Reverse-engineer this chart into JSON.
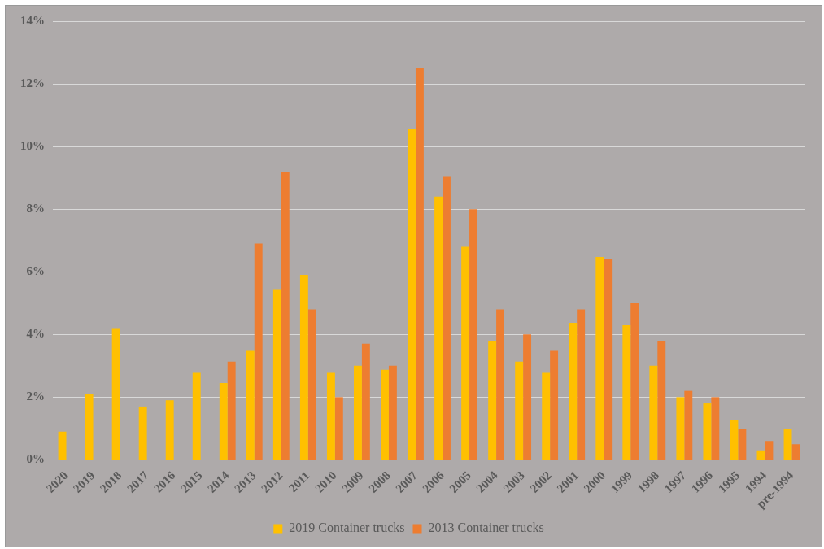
{
  "chart_data": {
    "type": "bar",
    "categories": [
      "2020",
      "2019",
      "2018",
      "2017",
      "2016",
      "2015",
      "2014",
      "2013",
      "2012",
      "2011",
      "2010",
      "2009",
      "2008",
      "2007",
      "2006",
      "2005",
      "2004",
      "2003",
      "2002",
      "2001",
      "2000",
      "1999",
      "1998",
      "1997",
      "1996",
      "1995",
      "1994",
      "pre-1994"
    ],
    "series": [
      {
        "name": "2019 Container trucks",
        "color": "#ffc000",
        "values": [
          0.9,
          2.1,
          4.2,
          1.7,
          1.9,
          2.8,
          2.45,
          3.5,
          5.45,
          5.9,
          2.8,
          3.0,
          2.87,
          10.55,
          8.4,
          6.8,
          3.8,
          3.13,
          2.8,
          4.37,
          6.47,
          4.3,
          3.0,
          2.0,
          1.8,
          1.26,
          0.3,
          1.0
        ]
      },
      {
        "name": "2013 Container trucks",
        "color": "#ed7d31",
        "values": [
          null,
          null,
          null,
          null,
          null,
          null,
          3.13,
          6.9,
          9.2,
          4.8,
          2.0,
          3.7,
          3.0,
          12.5,
          9.03,
          8.0,
          4.8,
          4.0,
          3.5,
          4.8,
          6.4,
          5.0,
          3.8,
          2.2,
          2.0,
          1.0,
          0.6,
          0.5
        ]
      }
    ],
    "ylim": [
      0,
      14
    ],
    "yticks": [
      {
        "value": 0,
        "label": "0%"
      },
      {
        "value": 2,
        "label": "2%"
      },
      {
        "value": 4,
        "label": "4%"
      },
      {
        "value": 6,
        "label": "6%"
      },
      {
        "value": 8,
        "label": "8%"
      },
      {
        "value": 10,
        "label": "10%"
      },
      {
        "value": 12,
        "label": "12%"
      },
      {
        "value": 14,
        "label": "14%"
      }
    ],
    "grid": "y",
    "legend": "bottom"
  }
}
